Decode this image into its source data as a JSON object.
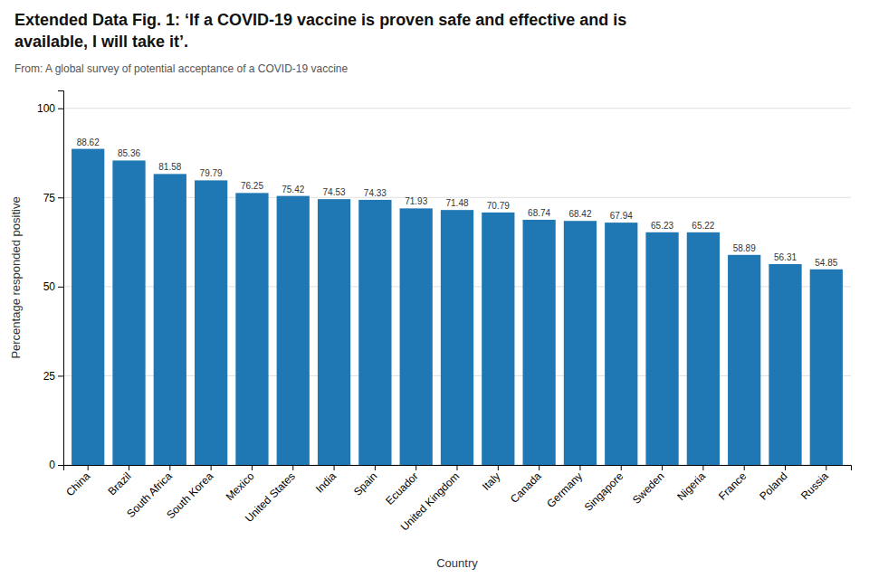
{
  "chart_data": {
    "type": "bar",
    "title": [
      "Extended Data Fig. 1: ‘If a COVID-19 vaccine is proven safe and effective and is",
      "available, I will take it’."
    ],
    "subtitle": "From: A global survey of potential acceptance of a COVID-19 vaccine",
    "categories": [
      "China",
      "Brazil",
      "South Africa",
      "South Korea",
      "Mexico",
      "United States",
      "India",
      "Spain",
      "Ecuador",
      "United Kingdom",
      "Italy",
      "Canada",
      "Germany",
      "Singapore",
      "Sweden",
      "Nigeria",
      "France",
      "Poland",
      "Russia"
    ],
    "values": [
      88.62,
      85.36,
      81.58,
      79.79,
      76.25,
      75.42,
      74.53,
      74.33,
      71.93,
      71.48,
      70.79,
      68.74,
      68.42,
      67.94,
      65.23,
      65.22,
      58.89,
      56.31,
      54.85
    ],
    "xlabel": "Country",
    "ylabel": "Percentage responded positive",
    "ylim": [
      0,
      105
    ],
    "yticks": [
      0,
      25,
      50,
      75,
      100
    ],
    "grid": true,
    "data_labels": true
  }
}
